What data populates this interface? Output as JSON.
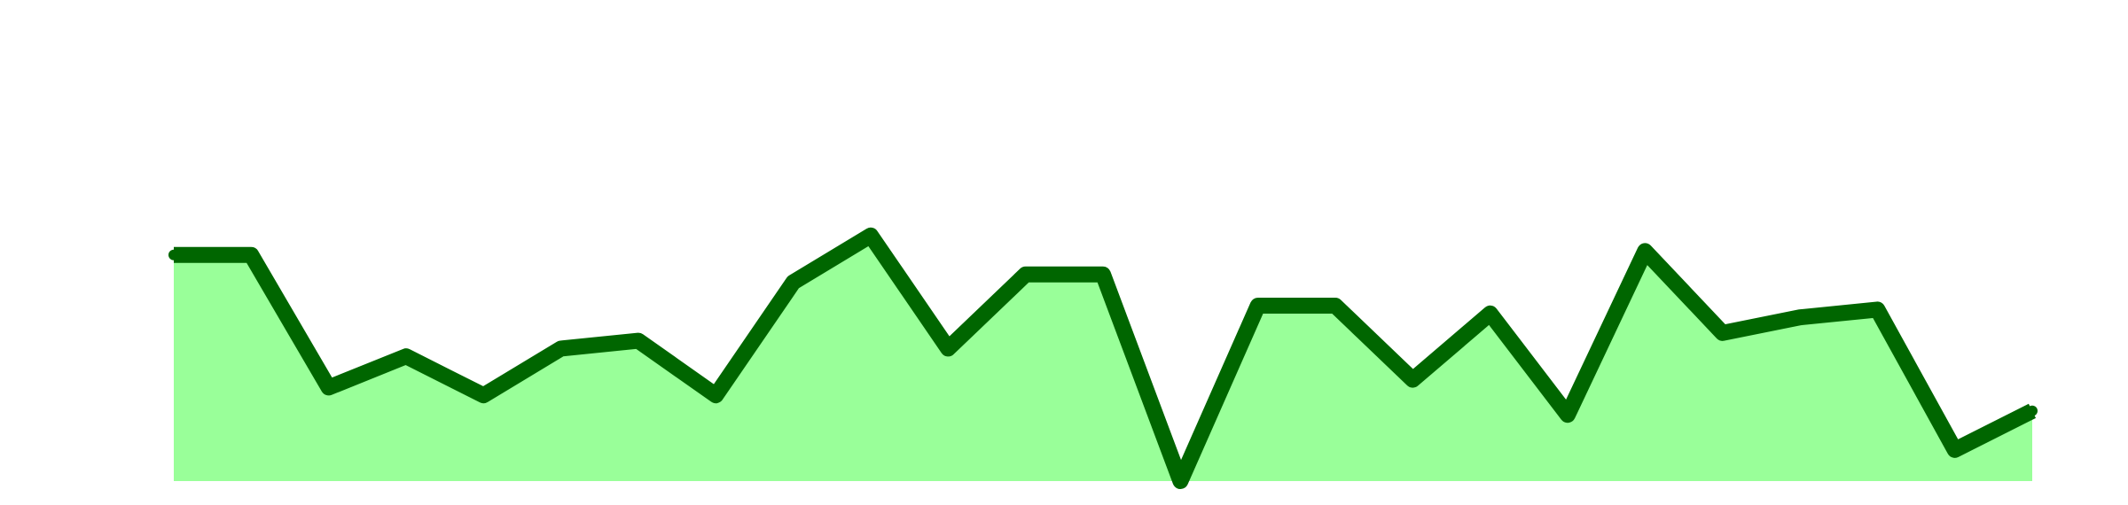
{
  "colors": {
    "fill": "#99ff99",
    "line": "#006600",
    "background": "#ffffff"
  },
  "chart_data": {
    "type": "area",
    "title": "",
    "xlabel": "",
    "ylabel": "",
    "grid": false,
    "legend": "none",
    "axes_visible": false,
    "x": [
      0,
      1,
      2,
      3,
      4,
      5,
      6,
      7,
      8,
      9,
      10,
      11,
      12,
      13,
      14,
      15,
      16,
      17,
      18,
      19,
      20,
      21,
      22,
      23,
      24
    ],
    "ylim": [
      0,
      10
    ],
    "series": [
      {
        "values": [
          5.8,
          5.8,
          2.4,
          3.2,
          2.2,
          3.4,
          3.6,
          2.2,
          5.1,
          6.3,
          3.4,
          5.3,
          5.3,
          0,
          4.5,
          4.5,
          2.6,
          4.3,
          1.7,
          5.9,
          3.8,
          4.2,
          4.4,
          0.8,
          1.8
        ]
      }
    ]
  }
}
